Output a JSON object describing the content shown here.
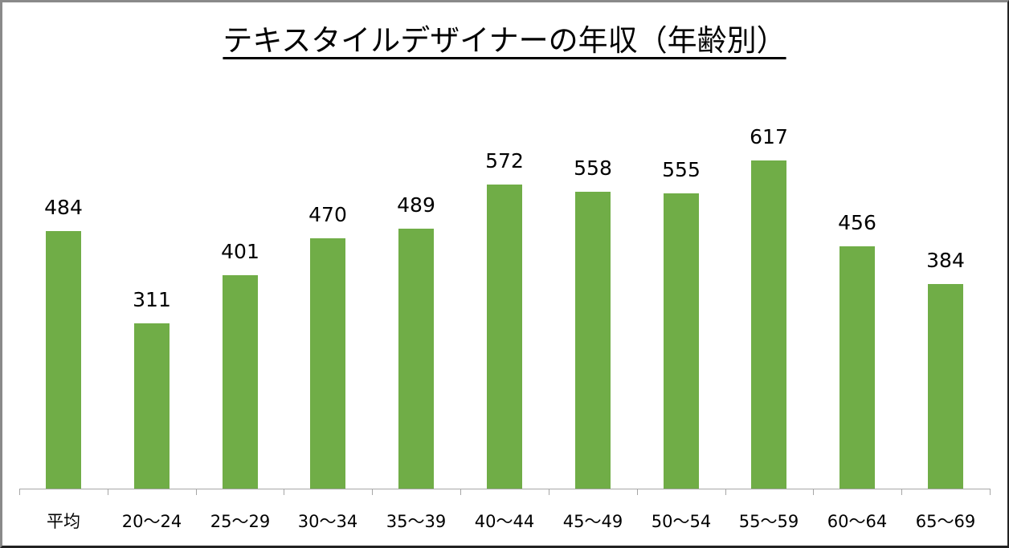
{
  "chart_data": {
    "type": "bar",
    "title": "テキスタイルデザイナーの年収（年齢別）",
    "categories": [
      "平均",
      "20〜24",
      "25〜29",
      "30〜34",
      "35〜39",
      "40〜44",
      "45〜49",
      "50〜54",
      "55〜59",
      "60〜64",
      "65〜69"
    ],
    "values": [
      484,
      311,
      401,
      470,
      489,
      572,
      558,
      555,
      617,
      456,
      384
    ],
    "xlabel": "",
    "ylabel": "",
    "ylim": [
      0,
      700
    ],
    "grid": false,
    "legend": "none",
    "data_labels": true,
    "bar_color": "#70ad47"
  }
}
